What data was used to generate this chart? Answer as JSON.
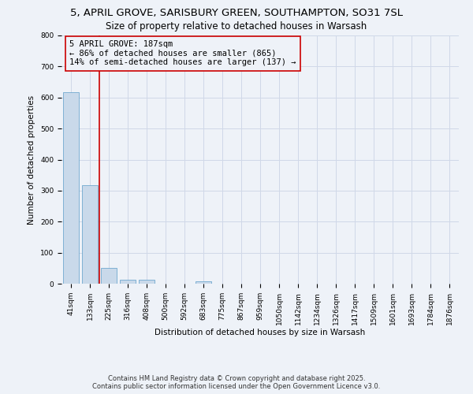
{
  "title_line1": "5, APRIL GROVE, SARISBURY GREEN, SOUTHAMPTON, SO31 7SL",
  "title_line2": "Size of property relative to detached houses in Warsash",
  "categories": [
    "41sqm",
    "133sqm",
    "225sqm",
    "316sqm",
    "408sqm",
    "500sqm",
    "592sqm",
    "683sqm",
    "775sqm",
    "867sqm",
    "959sqm",
    "1050sqm",
    "1142sqm",
    "1234sqm",
    "1326sqm",
    "1417sqm",
    "1509sqm",
    "1601sqm",
    "1693sqm",
    "1784sqm",
    "1876sqm"
  ],
  "values": [
    617,
    317,
    50,
    12,
    13,
    0,
    0,
    8,
    0,
    0,
    0,
    0,
    0,
    0,
    0,
    0,
    0,
    0,
    0,
    0,
    0
  ],
  "bar_color": "#c9d9ea",
  "bar_edge_color": "#5a9dc8",
  "ylim": [
    0,
    800
  ],
  "yticks": [
    0,
    100,
    200,
    300,
    400,
    500,
    600,
    700,
    800
  ],
  "ylabel": "Number of detached properties",
  "xlabel": "Distribution of detached houses by size in Warsash",
  "vline_color": "#cc0000",
  "annotation_text": "5 APRIL GROVE: 187sqm\n← 86% of detached houses are smaller (865)\n14% of semi-detached houses are larger (137) →",
  "footer_line1": "Contains HM Land Registry data © Crown copyright and database right 2025.",
  "footer_line2": "Contains public sector information licensed under the Open Government Licence v3.0.",
  "background_color": "#eef2f8",
  "grid_color": "#d0d8e8",
  "title_fontsize": 9.5,
  "subtitle_fontsize": 8.5,
  "axis_fontsize": 7.5,
  "tick_fontsize": 6.5,
  "annotation_fontsize": 7.5
}
